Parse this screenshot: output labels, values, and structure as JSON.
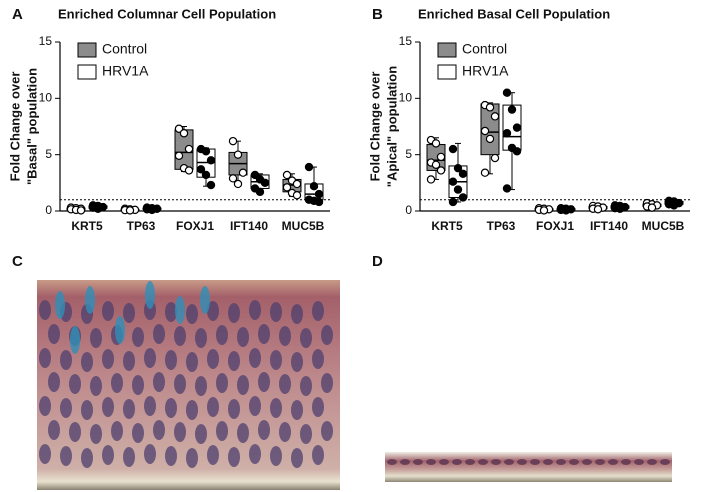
{
  "chart_data": [
    {
      "type": "box",
      "panel_label": "A",
      "title": "Enriched Columnar Cell Population",
      "ylabel": [
        "Fold Change over",
        "\"Basal\" population"
      ],
      "categories": [
        "KRT5",
        "TP63",
        "FOXJ1",
        "IFT140",
        "MUC5B"
      ],
      "ylim": [
        0,
        15
      ],
      "yticks": [
        0,
        5,
        10,
        15
      ],
      "reference_line": 1,
      "series": [
        {
          "name": "Control",
          "color": "#8c8c8c",
          "boxes": [
            {
              "min": 0.05,
              "q1": 0.1,
              "median": 0.15,
              "q3": 0.25,
              "max": 0.3,
              "points": [
                0.3,
                0.25,
                0.2,
                0.15,
                0.1,
                0.05
              ]
            },
            {
              "min": 0.05,
              "q1": 0.08,
              "median": 0.1,
              "q3": 0.15,
              "max": 0.2,
              "points": [
                0.2,
                0.15,
                0.1,
                0.08,
                0.05
              ]
            },
            {
              "min": 3.5,
              "q1": 3.7,
              "median": 5.2,
              "q3": 7.2,
              "max": 7.5,
              "points": [
                7.3,
                6.9,
                5.5,
                4.9,
                3.8,
                3.6
              ]
            },
            {
              "min": 2.4,
              "q1": 3.2,
              "median": 4.2,
              "q3": 5.2,
              "max": 6.2,
              "points": [
                6.2,
                5.0,
                3.4,
                2.9,
                2.4
              ]
            },
            {
              "min": 1.3,
              "q1": 1.7,
              "median": 2.3,
              "q3": 2.8,
              "max": 3.3,
              "points": [
                3.2,
                2.7,
                2.4,
                2.1,
                1.6,
                1.4
              ]
            }
          ]
        },
        {
          "name": "HRV1A",
          "color": "#ffffff",
          "boxes": [
            {
              "min": 0.2,
              "q1": 0.25,
              "median": 0.35,
              "q3": 0.45,
              "max": 0.5,
              "points": [
                0.5,
                0.45,
                0.35,
                0.3,
                0.2
              ]
            },
            {
              "min": 0.1,
              "q1": 0.15,
              "median": 0.2,
              "q3": 0.25,
              "max": 0.3,
              "points": [
                0.3,
                0.25,
                0.2,
                0.15,
                0.1
              ]
            },
            {
              "min": 2.2,
              "q1": 3.0,
              "median": 4.3,
              "q3": 5.5,
              "max": 5.6,
              "points": [
                5.5,
                5.3,
                4.5,
                3.7,
                3.2,
                2.3
              ]
            },
            {
              "min": 1.6,
              "q1": 2.0,
              "median": 2.6,
              "q3": 3.2,
              "max": 3.3,
              "points": [
                3.2,
                2.8,
                2.5,
                2.0,
                1.7
              ]
            },
            {
              "min": 0.8,
              "q1": 1.0,
              "median": 1.5,
              "q3": 2.4,
              "max": 3.9,
              "points": [
                3.9,
                2.2,
                1.5,
                1.0,
                0.9,
                0.8
              ]
            }
          ]
        }
      ]
    },
    {
      "type": "box",
      "panel_label": "B",
      "title": "Enriched Basal Cell Population",
      "ylabel": [
        "Fold Change over",
        "\"Apical\" population"
      ],
      "categories": [
        "KRT5",
        "TP63",
        "FOXJ1",
        "IFT140",
        "MUC5B"
      ],
      "ylim": [
        0,
        15
      ],
      "yticks": [
        0,
        5,
        10,
        15
      ],
      "reference_line": 1,
      "series": [
        {
          "name": "Control",
          "color": "#8c8c8c",
          "boxes": [
            {
              "min": 2.8,
              "q1": 3.6,
              "median": 4.5,
              "q3": 5.9,
              "max": 6.5,
              "points": [
                6.3,
                6.0,
                4.8,
                4.3,
                4.1,
                3.6,
                2.8
              ]
            },
            {
              "min": 3.3,
              "q1": 5.0,
              "median": 7.0,
              "q3": 9.5,
              "max": 9.6,
              "points": [
                9.4,
                9.2,
                8.4,
                7.1,
                6.4,
                4.7,
                3.4
              ]
            },
            {
              "min": 0.05,
              "q1": 0.1,
              "median": 0.15,
              "q3": 0.2,
              "max": 0.25,
              "points": [
                0.25,
                0.2,
                0.15,
                0.1,
                0.05
              ]
            },
            {
              "min": 0.15,
              "q1": 0.2,
              "median": 0.3,
              "q3": 0.4,
              "max": 0.45,
              "points": [
                0.45,
                0.4,
                0.3,
                0.2,
                0.15
              ]
            },
            {
              "min": 0.3,
              "q1": 0.4,
              "median": 0.5,
              "q3": 0.6,
              "max": 0.7,
              "points": [
                0.7,
                0.6,
                0.5,
                0.4,
                0.3
              ]
            }
          ]
        },
        {
          "name": "HRV1A",
          "color": "#ffffff",
          "boxes": [
            {
              "min": 0.8,
              "q1": 1.2,
              "median": 2.6,
              "q3": 4.0,
              "max": 6.0,
              "points": [
                5.5,
                3.8,
                3.3,
                2.6,
                1.9,
                1.2,
                0.8
              ]
            },
            {
              "min": 1.9,
              "q1": 5.4,
              "median": 6.6,
              "q3": 9.4,
              "max": 10.5,
              "points": [
                10.5,
                9.0,
                7.4,
                6.9,
                5.6,
                5.3,
                2.0
              ]
            },
            {
              "min": 0.05,
              "q1": 0.1,
              "median": 0.15,
              "q3": 0.2,
              "max": 0.25,
              "points": [
                0.25,
                0.2,
                0.15,
                0.1,
                0.05
              ]
            },
            {
              "min": 0.2,
              "q1": 0.25,
              "median": 0.35,
              "q3": 0.45,
              "max": 0.5,
              "points": [
                0.5,
                0.45,
                0.35,
                0.25,
                0.2
              ]
            },
            {
              "min": 0.5,
              "q1": 0.6,
              "median": 0.7,
              "q3": 0.85,
              "max": 0.9,
              "points": [
                0.9,
                0.85,
                0.7,
                0.6,
                0.5
              ]
            }
          ]
        }
      ]
    }
  ],
  "image_panels": [
    {
      "label": "C"
    },
    {
      "label": "D"
    }
  ]
}
